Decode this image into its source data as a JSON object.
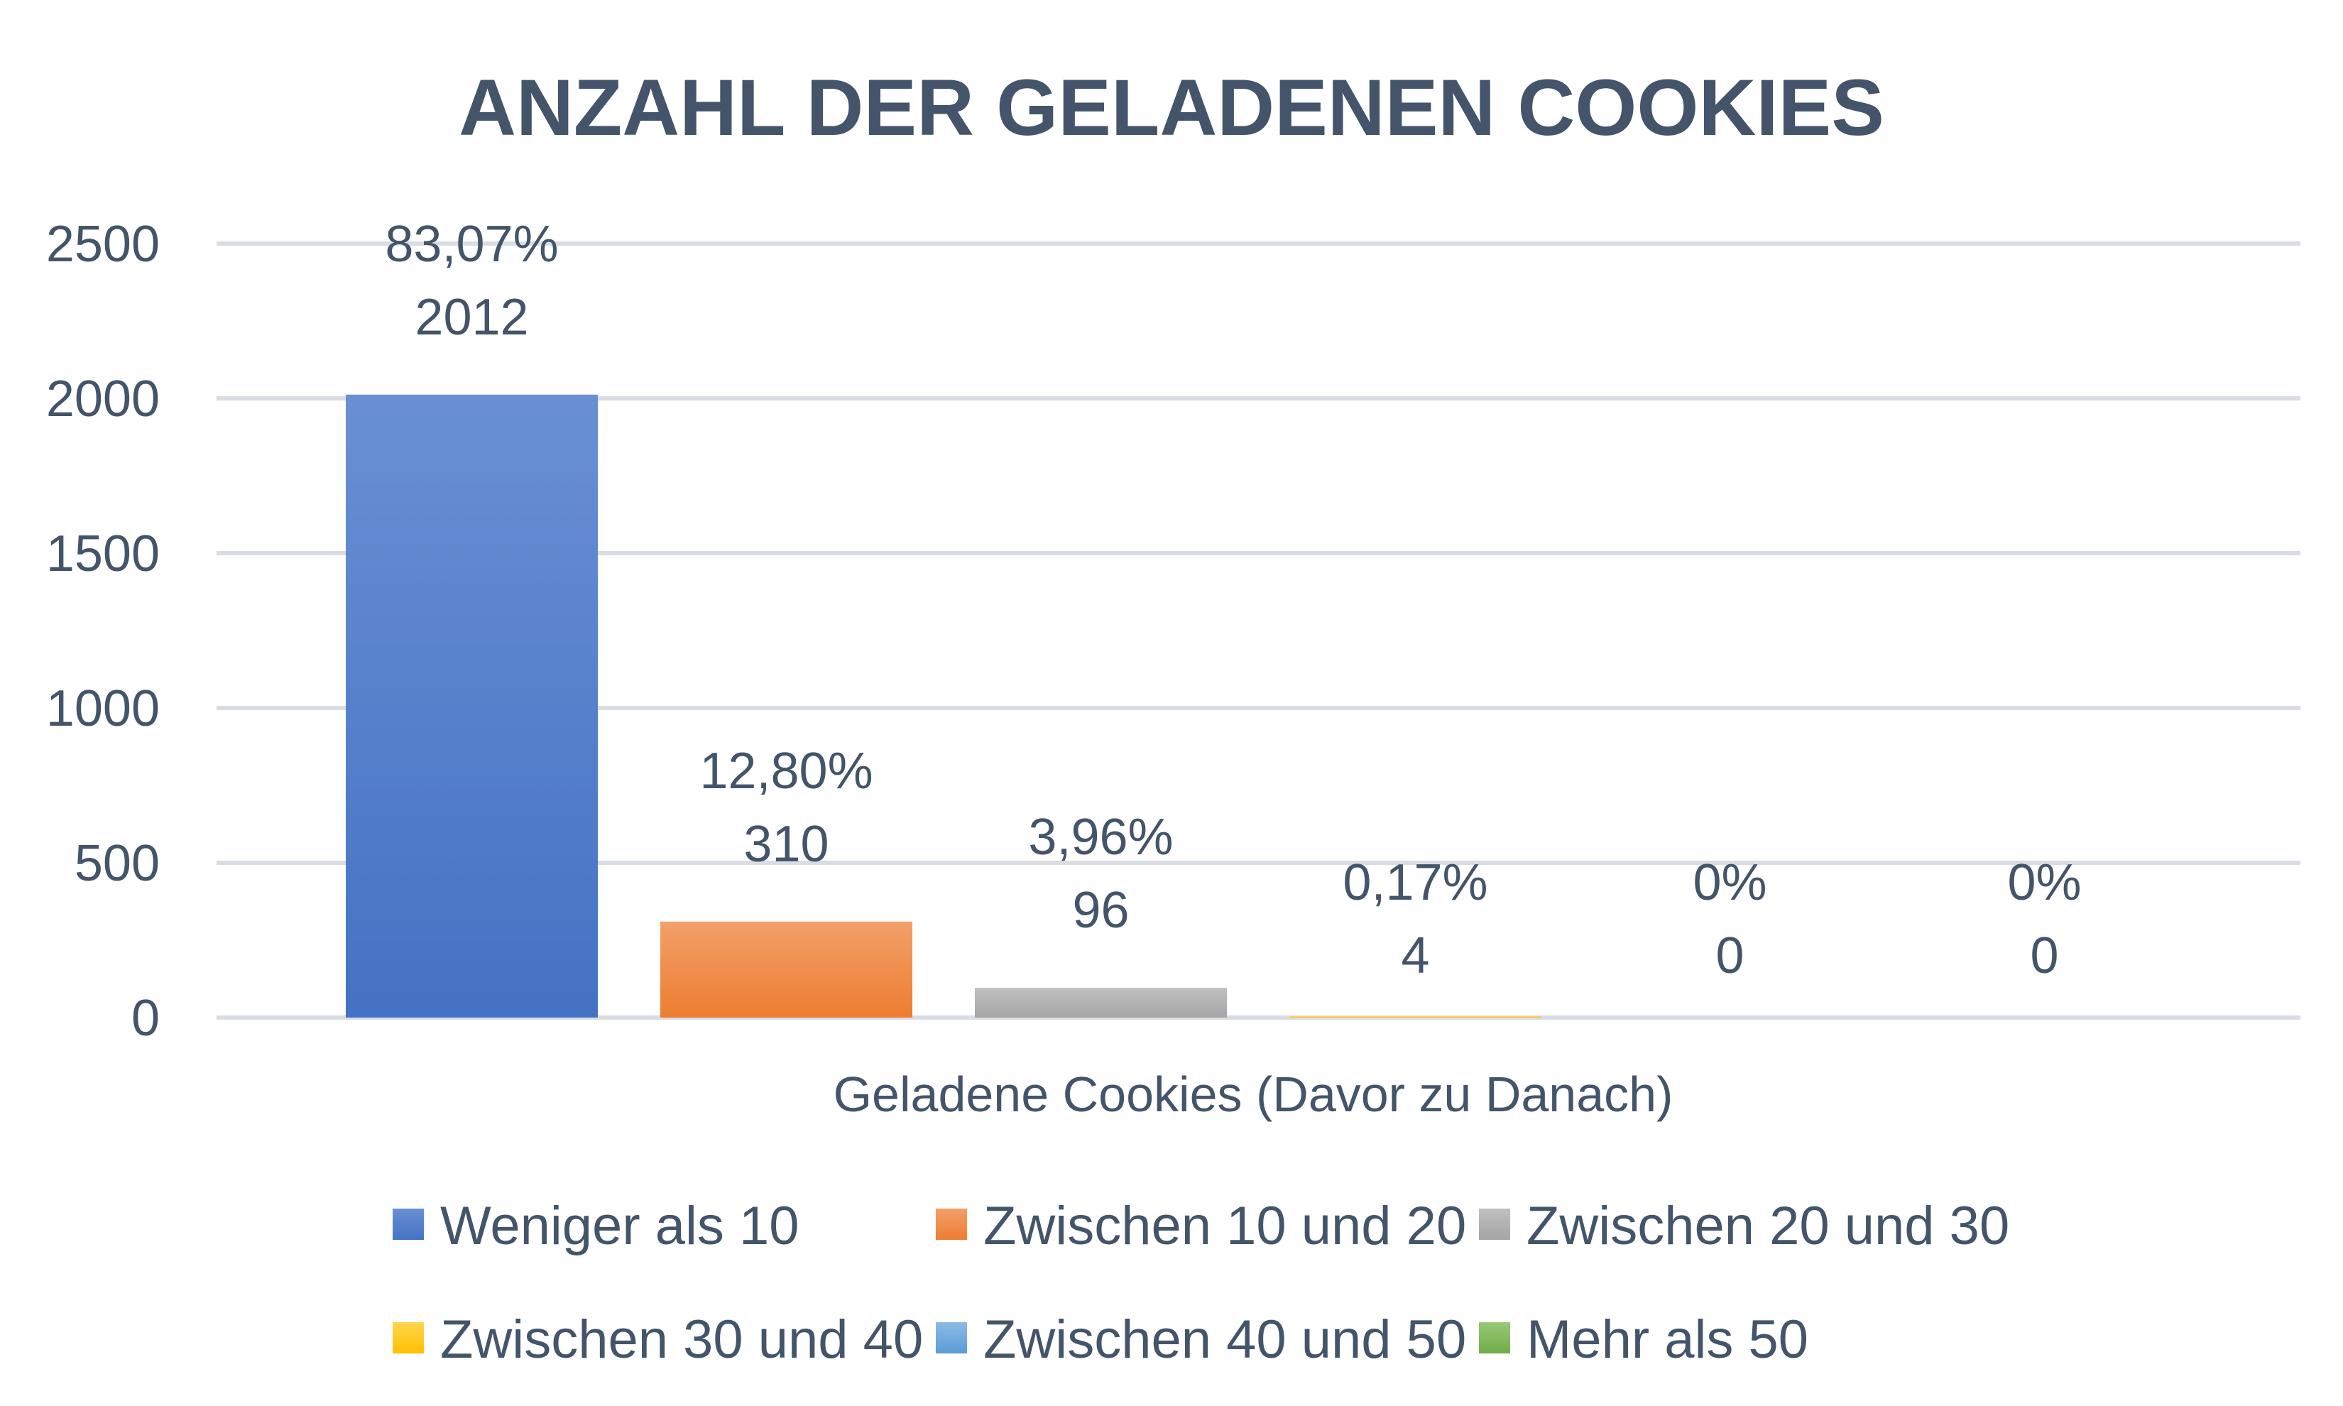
{
  "chart_data": {
    "type": "bar",
    "title": "ANZAHL DER GELADENEN COOKIES",
    "xlabel": "Geladene Cookies (Davor zu Danach)",
    "ylabel": "",
    "ylim": [
      0,
      2500
    ],
    "yticks": [
      "0",
      "500",
      "1000",
      "1500",
      "2000",
      "2500"
    ],
    "ytick_values": [
      0,
      500,
      1000,
      1500,
      2000,
      2500
    ],
    "grid": true,
    "legend_position": "bottom",
    "series": [
      {
        "name": "Weniger als 10",
        "value": 2012,
        "value_label": "2012",
        "percent_label": "83,07%",
        "color": "#4472c4",
        "color_light": "#6a8fd3"
      },
      {
        "name": "Zwischen 10 und 20",
        "value": 310,
        "value_label": "310",
        "percent_label": "12,80%",
        "color": "#ed7d31",
        "color_light": "#f3a06a"
      },
      {
        "name": "Zwischen 20 und 30",
        "value": 96,
        "value_label": "96",
        "percent_label": "3,96%",
        "color": "#a5a5a5",
        "color_light": "#c0c0c0"
      },
      {
        "name": "Zwischen 30 und 40",
        "value": 4,
        "value_label": "4",
        "percent_label": "0,17%",
        "color": "#ffc000",
        "color_light": "#ffd54f"
      },
      {
        "name": "Zwischen 40 und 50",
        "value": 0,
        "value_label": "0",
        "percent_label": "0%",
        "color": "#5b9bd5",
        "color_light": "#8cbbe6"
      },
      {
        "name": "Mehr als 50",
        "value": 0,
        "value_label": "0",
        "percent_label": "0%",
        "color": "#70ad47",
        "color_light": "#98c878"
      }
    ]
  }
}
